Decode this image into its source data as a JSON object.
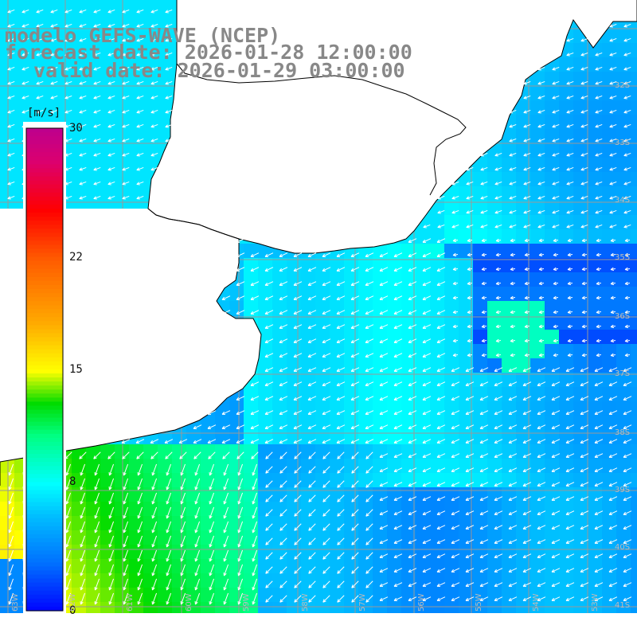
{
  "header": {
    "line1": "modelo GEFS-WAVE (NCEP)",
    "line2": "forecast date: 2026-01-28 12:00:00",
    "line3": "valid date: 2026-01-29 03:00:00"
  },
  "colorbar": {
    "unit": "[m/s]",
    "ticks": [
      {
        "value": 30,
        "label": "30"
      },
      {
        "value": 22,
        "label": "22"
      },
      {
        "value": 15,
        "label": "15"
      },
      {
        "value": 8,
        "label": "8"
      },
      {
        "value": 0,
        "label": "0"
      }
    ],
    "min": 0,
    "max": 30
  },
  "map": {
    "latitude_labels": [
      "32S",
      "33S",
      "34S",
      "35S",
      "36S",
      "37S",
      "38S",
      "39S",
      "40S",
      "41S"
    ],
    "longitude_labels": [
      "63W",
      "62W",
      "61W",
      "60W",
      "59W",
      "58W",
      "57W",
      "56W",
      "55W",
      "54W",
      "53W"
    ],
    "colors": {
      "land": "#ffffff",
      "coast": "#000000",
      "grid": "#999999",
      "arrows": "#ffffff"
    }
  }
}
